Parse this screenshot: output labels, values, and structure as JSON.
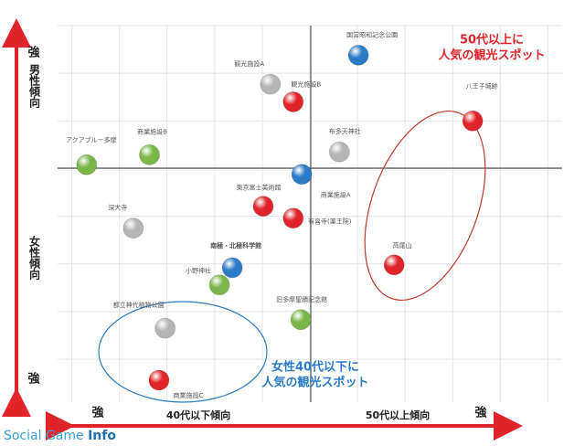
{
  "chart_data": {
    "type": "scatter",
    "points": [
      "国営昭和記念公園",
      "観光施設A",
      "観光施設B",
      "八王子城跡",
      "布多天神社",
      "アクアブルー多摩",
      "商業施設B",
      "商業施設A",
      "東京富士美術館",
      "有喜寺(薬王院)",
      "深大寺",
      "高尾山",
      "南極・北極科学館",
      "小野神社",
      "旧多摩聖蹟記念館",
      "都立神代植物公園",
      "商業施設C"
    ],
    "x": [
      1.02,
      -0.83,
      -0.35,
      3.42,
      0.62,
      -4.69,
      -3.37,
      -0.17,
      -0.98,
      -0.35,
      -3.71,
      1.77,
      -1.63,
      -1.9,
      -0.19,
      -3.04,
      -3.17
    ],
    "values": [
      2.38,
      1.77,
      1.4,
      1.0,
      0.35,
      0.08,
      0.29,
      -0.12,
      -0.79,
      -1.04,
      -1.25,
      -2.02,
      -2.08,
      -2.44,
      -3.17,
      -3.35,
      -4.44
    ],
    "colors": [
      "#2b7bc6",
      "#b5b5b5",
      "#e0252a",
      "#e0252a",
      "#b5b5b5",
      "#7ab648",
      "#7ab648",
      "#2b7bc6",
      "#e0252a",
      "#e0252a",
      "#b5b5b5",
      "#e0252a",
      "#2b7bc6",
      "#7ab648",
      "#7ab648",
      "#b5b5b5",
      "#e0252a"
    ],
    "xlim": [
      -5.3,
      5.3
    ],
    "ylim": [
      -4.9,
      3
    ],
    "xticks": [
      -5,
      -4,
      -3,
      -2,
      -1,
      0,
      1,
      2,
      3,
      4,
      5
    ],
    "yticks": [
      -4,
      -3,
      -2,
      -1,
      0,
      1,
      2,
      3
    ],
    "grid": true,
    "y_axis_labels": {
      "top_strong": "強",
      "top": "男性傾向",
      "bottom": "女性傾向",
      "bottom_strong": "強"
    },
    "x_axis_labels": {
      "left_strong": "強",
      "left": "40代以下傾向",
      "right": "50代以上傾向",
      "right_strong": "強"
    },
    "annotations": [
      {
        "lines": [
          "50代以上に",
          "人気の観光スポット"
        ],
        "color": "#e0252a"
      },
      {
        "lines": [
          "女性40代以下に",
          "人気の観光スポット"
        ],
        "color": "#2b7bc6"
      }
    ],
    "watermark": {
      "part1": "Social Game ",
      "part2": "Info"
    }
  }
}
